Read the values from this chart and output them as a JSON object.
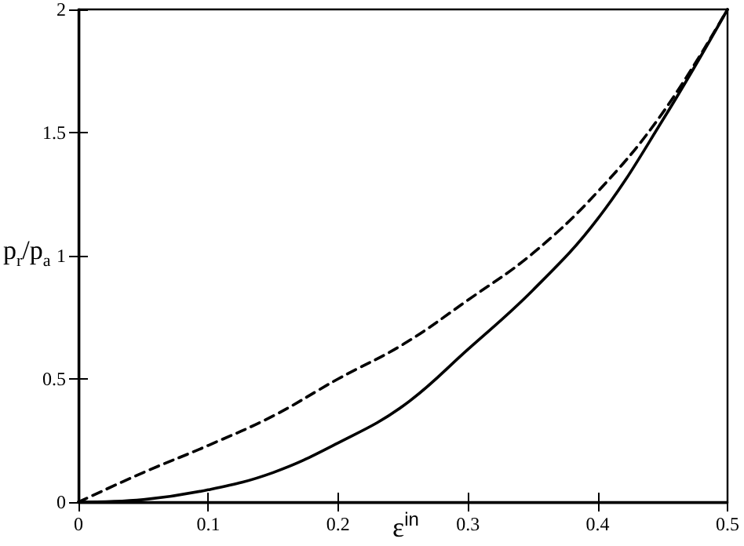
{
  "chart_data": {
    "type": "line",
    "xlabel": "ε$^{in}$",
    "ylabel": "p$_{r}$/p$_{a}$",
    "xlim": [
      0,
      0.5
    ],
    "xticks": [
      0,
      0.1,
      0.2,
      0.3,
      0.4,
      0.5
    ],
    "ylim": [
      0,
      2
    ],
    "yticks": [
      0,
      0.5,
      1,
      1.5,
      2
    ],
    "grid": false,
    "marker": "none",
    "series": [
      {
        "color": "#000000",
        "line_style": "solid",
        "x": [
          0,
          0.05,
          0.1,
          0.15,
          0.2,
          0.25,
          0.3,
          0.35,
          0.4,
          0.45,
          0.5
        ],
        "values": [
          0,
          0.01,
          0.05,
          0.12,
          0.24,
          0.39,
          0.62,
          0.86,
          1.15,
          1.55,
          2
        ]
      },
      {
        "color": "#000000",
        "line_style": "dashed",
        "x": [
          0,
          0.05,
          0.1,
          0.15,
          0.2,
          0.25,
          0.3,
          0.35,
          0.4,
          0.45,
          0.5
        ],
        "values": [
          0,
          0.12,
          0.23,
          0.35,
          0.5,
          0.64,
          0.82,
          1.01,
          1.26,
          1.58,
          2
        ]
      }
    ]
  }
}
